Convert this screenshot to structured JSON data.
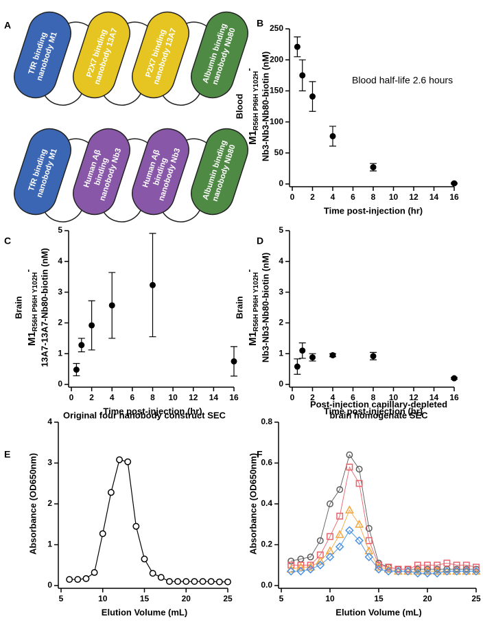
{
  "diagram": {
    "panel_label": "A",
    "constructs": [
      {
        "nanobodies": [
          {
            "lines": [
              "TfR binding",
              "nanobody M1"
            ],
            "color": "#3a66b3"
          },
          {
            "lines": [
              "P2X7 binding",
              "nanobody 13A7"
            ],
            "color": "#e6c522"
          },
          {
            "lines": [
              "P2X7 binding",
              "nanobody 13A7"
            ],
            "color": "#e6c522"
          },
          {
            "lines": [
              "Albumin binding",
              "nanobody Nb80"
            ],
            "color": "#4f8a45"
          }
        ]
      },
      {
        "nanobodies": [
          {
            "lines": [
              "TfR binding",
              "nanobody M1"
            ],
            "color": "#3a66b3"
          },
          {
            "lines": [
              "Human Aβ",
              "binding",
              "nanobody Nb3"
            ],
            "color": "#8957a8"
          },
          {
            "lines": [
              "Human Aβ",
              "binding",
              "nanobody Nb3"
            ],
            "color": "#8957a8"
          },
          {
            "lines": [
              "Albumin binding",
              "nanobody Nb80"
            ],
            "color": "#4f8a45"
          }
        ]
      }
    ]
  },
  "chart_data": [
    {
      "type": "scatter",
      "panel_label": "B",
      "color": "#000000",
      "ylabel": [
        "Blood",
        {
          "main": "M1",
          "sub": "R56H P96H Y102H",
          "end": "-"
        },
        "Nb3-Nb3-Nb80-biotin (nM)"
      ],
      "xlabel": "Time post-injection (hr)",
      "annotation": "Blood half-life 2.6 hours",
      "x": [
        0.5,
        1,
        2,
        4,
        8,
        16
      ],
      "values": [
        221,
        175,
        141,
        77,
        27,
        1
      ],
      "errors": [
        16,
        25,
        24,
        16,
        6,
        1
      ],
      "xlim": [
        0,
        16
      ],
      "xticks": [
        0,
        2,
        4,
        6,
        8,
        10,
        12,
        14,
        16
      ],
      "ylim": [
        0,
        250
      ],
      "yticks": [
        0,
        50,
        100,
        150,
        200,
        250
      ]
    },
    {
      "type": "scatter",
      "panel_label": "C",
      "color": "#000000",
      "ylabel": [
        "Brain",
        {
          "main": "M1",
          "sub": "R56H P96H Y102H",
          "end": "-"
        },
        "13A7-13A7-Nb80-biotin (nM)"
      ],
      "xlabel": "Time post-injection (hr)",
      "x": [
        0.5,
        1,
        2,
        4,
        8,
        16
      ],
      "values": [
        0.48,
        1.28,
        1.92,
        2.57,
        3.23,
        0.75
      ],
      "errors": [
        0.2,
        0.22,
        0.8,
        1.07,
        1.68,
        0.48
      ],
      "xlim": [
        0,
        16
      ],
      "xticks": [
        0,
        2,
        4,
        6,
        8,
        10,
        12,
        14,
        16
      ],
      "ylim": [
        0,
        5
      ],
      "yticks": [
        0,
        1,
        2,
        3,
        4,
        5
      ]
    },
    {
      "type": "scatter",
      "panel_label": "D",
      "color": "#000000",
      "ylabel": [
        "Brain",
        {
          "main": "M1",
          "sub": "R56H P96H Y102H",
          "end": "-"
        },
        "Nb3-Nb3-Nb80-biotin (nM)"
      ],
      "xlabel": "Time post-injection (hr)",
      "x": [
        0.5,
        1,
        2,
        4,
        8,
        16
      ],
      "values": [
        0.58,
        1.1,
        0.88,
        0.95,
        0.92,
        0.2
      ],
      "errors": [
        0.25,
        0.25,
        0.12,
        0.05,
        0.12,
        0.03
      ],
      "xlim": [
        0,
        16
      ],
      "xticks": [
        0,
        2,
        4,
        6,
        8,
        10,
        12,
        14,
        16
      ],
      "ylim": [
        0,
        5
      ],
      "yticks": [
        0,
        1,
        2,
        3,
        4,
        5
      ]
    },
    {
      "type": "line",
      "panel_label": "E",
      "title": [
        "Original four nanobody construct SEC"
      ],
      "ylabel": [
        "Absorbance (OD650nm)"
      ],
      "xlabel": "Elution Volume (mL)",
      "x": [
        6,
        7,
        8,
        9,
        10,
        11,
        12,
        13,
        14,
        15,
        16,
        17,
        18,
        19,
        20,
        21,
        22,
        23,
        24,
        25
      ],
      "series": [
        {
          "color": "#000000",
          "marker": "circle",
          "values": [
            0.15,
            0.15,
            0.17,
            0.32,
            1.27,
            2.28,
            3.08,
            3.03,
            1.45,
            0.65,
            0.3,
            0.2,
            0.1,
            0.1,
            0.1,
            0.1,
            0.1,
            0.1,
            0.09,
            0.09
          ]
        }
      ],
      "xlim": [
        5,
        25
      ],
      "xticks": [
        5,
        10,
        15,
        20,
        25
      ],
      "ylim": [
        0,
        4
      ],
      "yticks": [
        0,
        1,
        2,
        3,
        4
      ]
    },
    {
      "type": "line",
      "panel_label": "F",
      "title": [
        "Post-injection capillary-depleted",
        "brain homogenate SEC"
      ],
      "ylabel": [
        "Absorbance (OD650nm)"
      ],
      "xlabel": "Elution Volume (mL)",
      "x": [
        6,
        7,
        8,
        9,
        10,
        11,
        12,
        13,
        14,
        15,
        16,
        17,
        18,
        19,
        20,
        21,
        22,
        23,
        24,
        25
      ],
      "series": [
        {
          "color": "#5a5a5a",
          "marker": "circle",
          "values": [
            0.12,
            0.13,
            0.14,
            0.22,
            0.4,
            0.47,
            0.64,
            0.57,
            0.28,
            0.11,
            0.09,
            0.08,
            0.08,
            0.08,
            0.08,
            0.08,
            0.08,
            0.08,
            0.08,
            0.08
          ]
        },
        {
          "color": "#e8606a",
          "marker": "square",
          "values": [
            0.1,
            0.1,
            0.1,
            0.15,
            0.24,
            0.34,
            0.58,
            0.5,
            0.22,
            0.1,
            0.09,
            0.08,
            0.08,
            0.1,
            0.1,
            0.1,
            0.11,
            0.1,
            0.1,
            0.09
          ]
        },
        {
          "color": "#f4a53c",
          "marker": "triangle",
          "values": [
            0.08,
            0.09,
            0.09,
            0.12,
            0.17,
            0.25,
            0.37,
            0.3,
            0.17,
            0.09,
            0.08,
            0.07,
            0.07,
            0.07,
            0.07,
            0.07,
            0.07,
            0.07,
            0.07,
            0.07
          ]
        },
        {
          "color": "#4a90e2",
          "marker": "diamond",
          "values": [
            0.07,
            0.07,
            0.08,
            0.1,
            0.14,
            0.19,
            0.27,
            0.22,
            0.14,
            0.08,
            0.07,
            0.07,
            0.07,
            0.06,
            0.06,
            0.06,
            0.07,
            0.07,
            0.07,
            0.07
          ]
        }
      ],
      "xlim": [
        5,
        25
      ],
      "xticks": [
        5,
        10,
        15,
        20,
        25
      ],
      "ylim": [
        0,
        0.8
      ],
      "yticks": [
        {
          "value": 0,
          "label": "0.0"
        },
        0.2,
        0.4,
        0.6,
        0.8
      ]
    }
  ]
}
